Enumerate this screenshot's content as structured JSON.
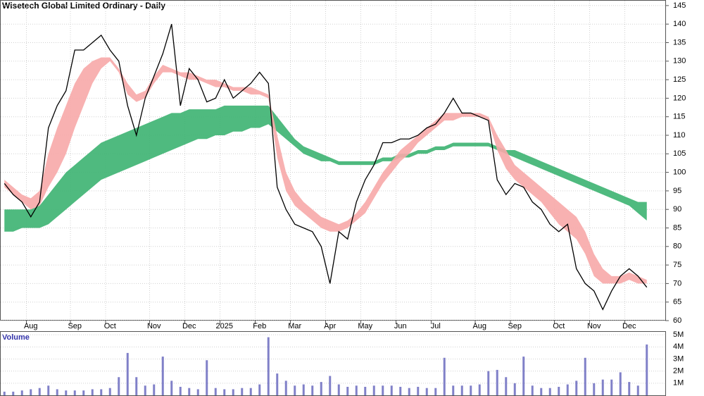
{
  "chart_data": {
    "type": "stock",
    "title": "Wisetech Global Limited Ordinary - Daily",
    "categories": [
      null,
      null,
      null,
      "Aug",
      null,
      null,
      null,
      null,
      "Sep",
      null,
      null,
      null,
      "Oct",
      null,
      null,
      null,
      null,
      "Nov",
      null,
      null,
      null,
      "Dec",
      null,
      null,
      null,
      "2025",
      null,
      null,
      null,
      "Feb",
      null,
      null,
      null,
      "Mar",
      null,
      null,
      null,
      "Apr",
      null,
      null,
      null,
      "May",
      null,
      null,
      null,
      "Jun",
      null,
      null,
      null,
      "Jul",
      null,
      null,
      null,
      null,
      "Aug",
      null,
      null,
      null,
      "Sep",
      null,
      null,
      null,
      null,
      "Oct",
      null,
      null,
      null,
      "Nov",
      null,
      null,
      null,
      "Dec",
      null,
      null
    ],
    "series": [
      {
        "color": "#000000",
        "values": [
          97,
          94,
          92,
          88,
          92,
          112,
          118,
          122,
          133,
          133,
          135,
          137,
          133,
          130,
          118,
          110,
          120,
          126,
          132,
          140,
          118,
          128,
          125,
          119,
          120,
          125,
          120,
          122,
          124,
          127,
          124,
          96,
          90,
          86,
          85,
          84,
          80,
          70,
          84,
          82,
          92,
          98,
          102,
          108,
          108,
          109,
          109,
          110,
          112,
          113,
          116,
          120,
          116,
          116,
          115,
          114,
          98,
          94,
          97,
          96,
          92,
          90,
          86,
          84,
          86,
          74,
          70,
          68,
          63,
          68,
          72,
          74,
          72,
          69
        ]
      }
    ],
    "bands": [
      {
        "color": "#3cb371",
        "upper": [
          90,
          90,
          90,
          90,
          91,
          94,
          97,
          100,
          102,
          104,
          106,
          108,
          109,
          110,
          111,
          112,
          113,
          114,
          115,
          116,
          116,
          117,
          117,
          117,
          117,
          118,
          118,
          118,
          118,
          118,
          118,
          115,
          112,
          109,
          107,
          106,
          105,
          104,
          103,
          103,
          103,
          103,
          103,
          104,
          104,
          105,
          105,
          106,
          106,
          107,
          107,
          108,
          108,
          108,
          108,
          108,
          107,
          106,
          106,
          105,
          104,
          103,
          102,
          101,
          100,
          99,
          98,
          97,
          96,
          95,
          94,
          93,
          92,
          92
        ],
        "lower": [
          84,
          84,
          85,
          85,
          85,
          86,
          88,
          90,
          92,
          94,
          96,
          98,
          99,
          100,
          101,
          102,
          103,
          104,
          105,
          106,
          107,
          108,
          109,
          109,
          110,
          110,
          111,
          111,
          112,
          112,
          113,
          111,
          109,
          107,
          105,
          104,
          103,
          103,
          102,
          102,
          102,
          102,
          102,
          103,
          103,
          104,
          104,
          105,
          105,
          106,
          106,
          107,
          107,
          107,
          107,
          107,
          106,
          105,
          104,
          103,
          102,
          101,
          100,
          99,
          98,
          97,
          96,
          95,
          94,
          93,
          92,
          91,
          89,
          87
        ]
      },
      {
        "color": "#f7a8a8",
        "upper": [
          98,
          96,
          94,
          93,
          95,
          105,
          112,
          118,
          124,
          128,
          130,
          131,
          131,
          128,
          124,
          121,
          122,
          126,
          129,
          128,
          127,
          127,
          126,
          125,
          125,
          124,
          123,
          123,
          123,
          122,
          121,
          110,
          100,
          95,
          92,
          90,
          88,
          87,
          86,
          87,
          89,
          92,
          96,
          100,
          103,
          106,
          108,
          110,
          112,
          114,
          116,
          116,
          116,
          116,
          116,
          115,
          110,
          106,
          102,
          100,
          98,
          96,
          94,
          92,
          90,
          88,
          84,
          78,
          74,
          72,
          72,
          73,
          72,
          71
        ],
        "lower": [
          96,
          94,
          92,
          90,
          91,
          96,
          100,
          105,
          112,
          118,
          124,
          128,
          130,
          127,
          121,
          119,
          120,
          124,
          127,
          127,
          126,
          125,
          125,
          124,
          123,
          123,
          122,
          122,
          121,
          121,
          120,
          104,
          95,
          91,
          89,
          87,
          85,
          84,
          84,
          85,
          87,
          89,
          93,
          97,
          100,
          103,
          105,
          108,
          110,
          112,
          114,
          114,
          115,
          115,
          115,
          114,
          106,
          101,
          98,
          96,
          94,
          92,
          89,
          86,
          84,
          82,
          78,
          72,
          70,
          70,
          70,
          71,
          70,
          70
        ]
      }
    ],
    "ylim": [
      60,
      146.5
    ],
    "yticks": [
      60,
      65,
      70,
      75,
      80,
      85,
      90,
      95,
      100,
      105,
      110,
      115,
      120,
      125,
      130,
      135,
      140,
      145
    ],
    "grid": true,
    "volume": {
      "label": "Volume",
      "color": "#8080c8",
      "values": [
        0.3,
        0.3,
        0.4,
        0.5,
        0.6,
        0.8,
        0.5,
        0.4,
        0.4,
        0.4,
        0.5,
        0.5,
        0.6,
        1.5,
        3.5,
        1.5,
        0.8,
        0.9,
        3.2,
        1.2,
        0.7,
        0.6,
        0.5,
        2.9,
        0.6,
        0.5,
        0.5,
        0.6,
        0.6,
        0.9,
        4.8,
        1.8,
        1.2,
        0.8,
        0.9,
        0.8,
        1.1,
        1.6,
        0.9,
        0.7,
        0.8,
        0.7,
        0.8,
        0.8,
        0.8,
        0.7,
        0.6,
        0.7,
        0.6,
        0.6,
        3.1,
        0.8,
        0.8,
        0.8,
        0.9,
        2.0,
        2.1,
        1.5,
        1.0,
        3.2,
        0.8,
        0.6,
        0.6,
        0.7,
        0.9,
        1.2,
        3.1,
        1.0,
        1.3,
        1.3,
        1.9,
        1.1,
        0.8,
        4.2
      ],
      "ylim": [
        0,
        5.3
      ],
      "yticks": [
        {
          "value": 1,
          "label": "1M"
        },
        {
          "value": 2,
          "label": "2M"
        },
        {
          "value": 3,
          "label": "3M"
        },
        {
          "value": 4,
          "label": "4M"
        },
        {
          "value": 5,
          "label": "5M"
        }
      ]
    }
  }
}
